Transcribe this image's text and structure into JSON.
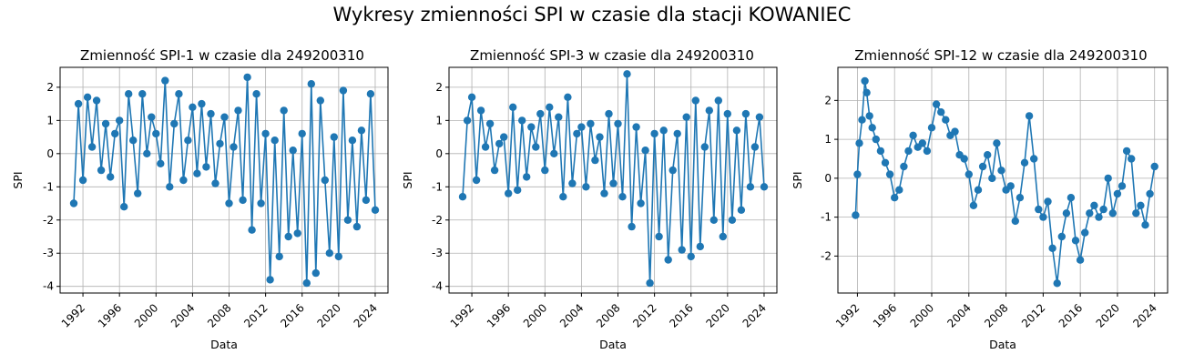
{
  "figure": {
    "title": "Wykresy zmienności SPI w czasie dla stacji KOWANIEC"
  },
  "colors": {
    "series": "#1f77b4",
    "grid": "#b0b0b0",
    "axis": "#000000"
  },
  "chart_data": [
    {
      "type": "line",
      "title": "Zmienność SPI-1 w czasie dla 249200310",
      "xlabel": "Data",
      "ylabel": "SPI",
      "xlim": [
        1989.5,
        2025.4
      ],
      "ylim": [
        -4.2,
        2.6
      ],
      "xticks": [
        1992,
        1996,
        2000,
        2004,
        2008,
        2012,
        2016,
        2020,
        2024
      ],
      "yticks": [
        -4,
        -3,
        -2,
        -1,
        0,
        1,
        2
      ],
      "grid": true,
      "series": [
        {
          "x": [
            1991.0,
            1991.5,
            1992.0,
            1992.5,
            1993.0,
            1993.5,
            1994.0,
            1994.5,
            1995.0,
            1995.5,
            1996.0,
            1996.5,
            1997.0,
            1997.5,
            1998.0,
            1998.5,
            1999.0,
            1999.5,
            2000.0,
            2000.5,
            2001.0,
            2001.5,
            2002.0,
            2002.5,
            2003.0,
            2003.5,
            2004.0,
            2004.5,
            2005.0,
            2005.5,
            2006.0,
            2006.5,
            2007.0,
            2007.5,
            2008.0,
            2008.5,
            2009.0,
            2009.5,
            2010.0,
            2010.5,
            2011.0,
            2011.5,
            2012.0,
            2012.5,
            2013.0,
            2013.5,
            2014.0,
            2014.5,
            2015.0,
            2015.5,
            2016.0,
            2016.5,
            2017.0,
            2017.5,
            2018.0,
            2018.5,
            2019.0,
            2019.5,
            2020.0,
            2020.5,
            2021.0,
            2021.5,
            2022.0,
            2022.5,
            2023.0,
            2023.5,
            2024.0
          ],
          "y": [
            -1.5,
            1.5,
            -0.8,
            1.7,
            0.2,
            1.6,
            -0.5,
            0.9,
            -0.7,
            0.6,
            1.0,
            -1.6,
            1.8,
            0.4,
            -1.2,
            1.8,
            0.0,
            1.1,
            0.6,
            -0.3,
            2.2,
            -1.0,
            0.9,
            1.8,
            -0.8,
            0.4,
            1.4,
            -0.6,
            1.5,
            -0.4,
            1.2,
            -0.9,
            0.3,
            1.1,
            -1.5,
            0.2,
            1.3,
            -1.4,
            2.3,
            -2.3,
            1.8,
            -1.5,
            0.6,
            -3.8,
            0.4,
            -3.1,
            1.3,
            -2.5,
            0.1,
            -2.4,
            0.6,
            -3.9,
            2.1,
            -3.6,
            1.6,
            -0.8,
            -3.0,
            0.5,
            -3.1,
            1.9,
            -2.0,
            0.4,
            -2.2,
            0.7,
            -1.4,
            1.8,
            -1.7
          ]
        }
      ]
    },
    {
      "type": "line",
      "title": "Zmienność SPI-3 w czasie dla 249200310",
      "xlabel": "Data",
      "ylabel": "SPI",
      "xlim": [
        1989.5,
        2025.4
      ],
      "ylim": [
        -4.2,
        2.6
      ],
      "xticks": [
        1992,
        1996,
        2000,
        2004,
        2008,
        2012,
        2016,
        2020,
        2024
      ],
      "yticks": [
        -4,
        -3,
        -2,
        -1,
        0,
        1,
        2
      ],
      "grid": true,
      "series": [
        {
          "x": [
            1991.0,
            1991.5,
            1992.0,
            1992.5,
            1993.0,
            1993.5,
            1994.0,
            1994.5,
            1995.0,
            1995.5,
            1996.0,
            1996.5,
            1997.0,
            1997.5,
            1998.0,
            1998.5,
            1999.0,
            1999.5,
            2000.0,
            2000.5,
            2001.0,
            2001.5,
            2002.0,
            2002.5,
            2003.0,
            2003.5,
            2004.0,
            2004.5,
            2005.0,
            2005.5,
            2006.0,
            2006.5,
            2007.0,
            2007.5,
            2008.0,
            2008.5,
            2009.0,
            2009.5,
            2010.0,
            2010.5,
            2011.0,
            2011.5,
            2012.0,
            2012.5,
            2013.0,
            2013.5,
            2014.0,
            2014.5,
            2015.0,
            2015.5,
            2016.0,
            2016.5,
            2017.0,
            2017.5,
            2018.0,
            2018.5,
            2019.0,
            2019.5,
            2020.0,
            2020.5,
            2021.0,
            2021.5,
            2022.0,
            2022.5,
            2023.0,
            2023.5,
            2024.0
          ],
          "y": [
            -1.3,
            1.0,
            1.7,
            -0.8,
            1.3,
            0.2,
            0.9,
            -0.5,
            0.3,
            0.5,
            -1.2,
            1.4,
            -1.1,
            1.0,
            -0.7,
            0.8,
            0.2,
            1.2,
            -0.5,
            1.4,
            0.0,
            1.1,
            -1.3,
            1.7,
            -0.9,
            0.6,
            0.8,
            -1.0,
            0.9,
            -0.2,
            0.5,
            -1.2,
            1.2,
            -0.9,
            0.9,
            -1.3,
            2.4,
            -2.2,
            0.8,
            -1.5,
            0.1,
            -3.9,
            0.6,
            -2.5,
            0.7,
            -3.2,
            -0.5,
            0.6,
            -2.9,
            1.1,
            -3.1,
            1.6,
            -2.8,
            0.2,
            1.3,
            -2.0,
            1.6,
            -2.5,
            1.2,
            -2.0,
            0.7,
            -1.7,
            1.2,
            -1.0,
            0.2,
            1.1,
            -1.0
          ]
        }
      ]
    },
    {
      "type": "line",
      "title": "Zmienność SPI-12 w czasie dla 249200310",
      "xlabel": "Data",
      "ylabel": "SPI",
      "xlim": [
        1989.9,
        2025.4
      ],
      "ylim": [
        -2.95,
        2.85
      ],
      "xticks": [
        1992,
        1996,
        2000,
        2004,
        2008,
        2012,
        2016,
        2020,
        2024
      ],
      "yticks": [
        -2,
        -1,
        0,
        1,
        2
      ],
      "grid": true,
      "series": [
        {
          "x": [
            1991.8,
            1992.0,
            1992.2,
            1992.5,
            1992.8,
            1993.0,
            1993.3,
            1993.6,
            1994.0,
            1994.5,
            1995.0,
            1995.5,
            1996.0,
            1996.5,
            1997.0,
            1997.5,
            1998.0,
            1998.5,
            1999.0,
            1999.5,
            2000.0,
            2000.5,
            2001.0,
            2001.5,
            2002.0,
            2002.5,
            2003.0,
            2003.5,
            2004.0,
            2004.5,
            2005.0,
            2005.5,
            2006.0,
            2006.5,
            2007.0,
            2007.5,
            2008.0,
            2008.5,
            2009.0,
            2009.5,
            2010.0,
            2010.5,
            2011.0,
            2011.5,
            2012.0,
            2012.5,
            2013.0,
            2013.5,
            2014.0,
            2014.5,
            2015.0,
            2015.5,
            2016.0,
            2016.5,
            2017.0,
            2017.5,
            2018.0,
            2018.5,
            2019.0,
            2019.5,
            2020.0,
            2020.5,
            2021.0,
            2021.5,
            2022.0,
            2022.5,
            2023.0,
            2023.5,
            2024.0
          ],
          "y": [
            -0.95,
            0.1,
            0.9,
            1.5,
            2.5,
            2.2,
            1.6,
            1.3,
            1.0,
            0.7,
            0.4,
            0.1,
            -0.5,
            -0.3,
            0.3,
            0.7,
            1.1,
            0.8,
            0.9,
            0.7,
            1.3,
            1.9,
            1.7,
            1.5,
            1.1,
            1.2,
            0.6,
            0.5,
            0.1,
            -0.7,
            -0.3,
            0.3,
            0.6,
            0.0,
            0.9,
            0.2,
            -0.3,
            -0.2,
            -1.1,
            -0.5,
            0.4,
            1.6,
            0.5,
            -0.8,
            -1.0,
            -0.6,
            -1.8,
            -2.7,
            -1.5,
            -0.9,
            -0.5,
            -1.6,
            -2.1,
            -1.4,
            -0.9,
            -0.7,
            -1.0,
            -0.8,
            0.0,
            -0.9,
            -0.4,
            -0.2,
            0.7,
            0.5,
            -0.9,
            -0.7,
            -1.2,
            -0.4,
            0.3
          ]
        }
      ]
    }
  ]
}
